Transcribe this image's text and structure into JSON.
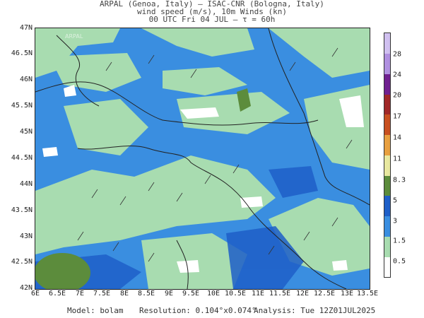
{
  "header": {
    "line1": "ARPAL (Genoa, Italy)  —  ISAC-CNR (Bologna, Italy)",
    "line2": "wind speed (m/s), 10m Winds (kn)",
    "line3": "00 UTC Fri 04 JUL  —  τ = 60h"
  },
  "map": {
    "watermark": "ARPAL",
    "lat_labels": [
      "47N",
      "46.5N",
      "46N",
      "45.5N",
      "45N",
      "44.5N",
      "44N",
      "43.5N",
      "43N",
      "42.5N",
      "42N"
    ],
    "lon_labels": [
      "6E",
      "6.5E",
      "7E",
      "7.5E",
      "8E",
      "8.5E",
      "9E",
      "9.5E",
      "10E",
      "10.5E",
      "11E",
      "11.5E",
      "12E",
      "12.5E",
      "13E",
      "13.5E"
    ],
    "lat_range": [
      42,
      47
    ],
    "lon_range": [
      6,
      13.5
    ]
  },
  "colorbar": {
    "labels": [
      "0.5",
      "1.5",
      "3",
      "5",
      "8.3",
      "11",
      "14",
      "17",
      "20",
      "24",
      "28"
    ],
    "colors": [
      "#ffffff",
      "#a8dcb0",
      "#3a8ee0",
      "#1e5fc8",
      "#5c8c3c",
      "#e8e8a0",
      "#e8a040",
      "#c85020",
      "#a02828",
      "#702090",
      "#b090e0",
      "#d0c0f0"
    ]
  },
  "footer": {
    "model": "Model: bolam",
    "resolution": "Resolution: 0.104°x0.074°",
    "analysis": "Analysis: Tue 12Z01JUL2025"
  }
}
